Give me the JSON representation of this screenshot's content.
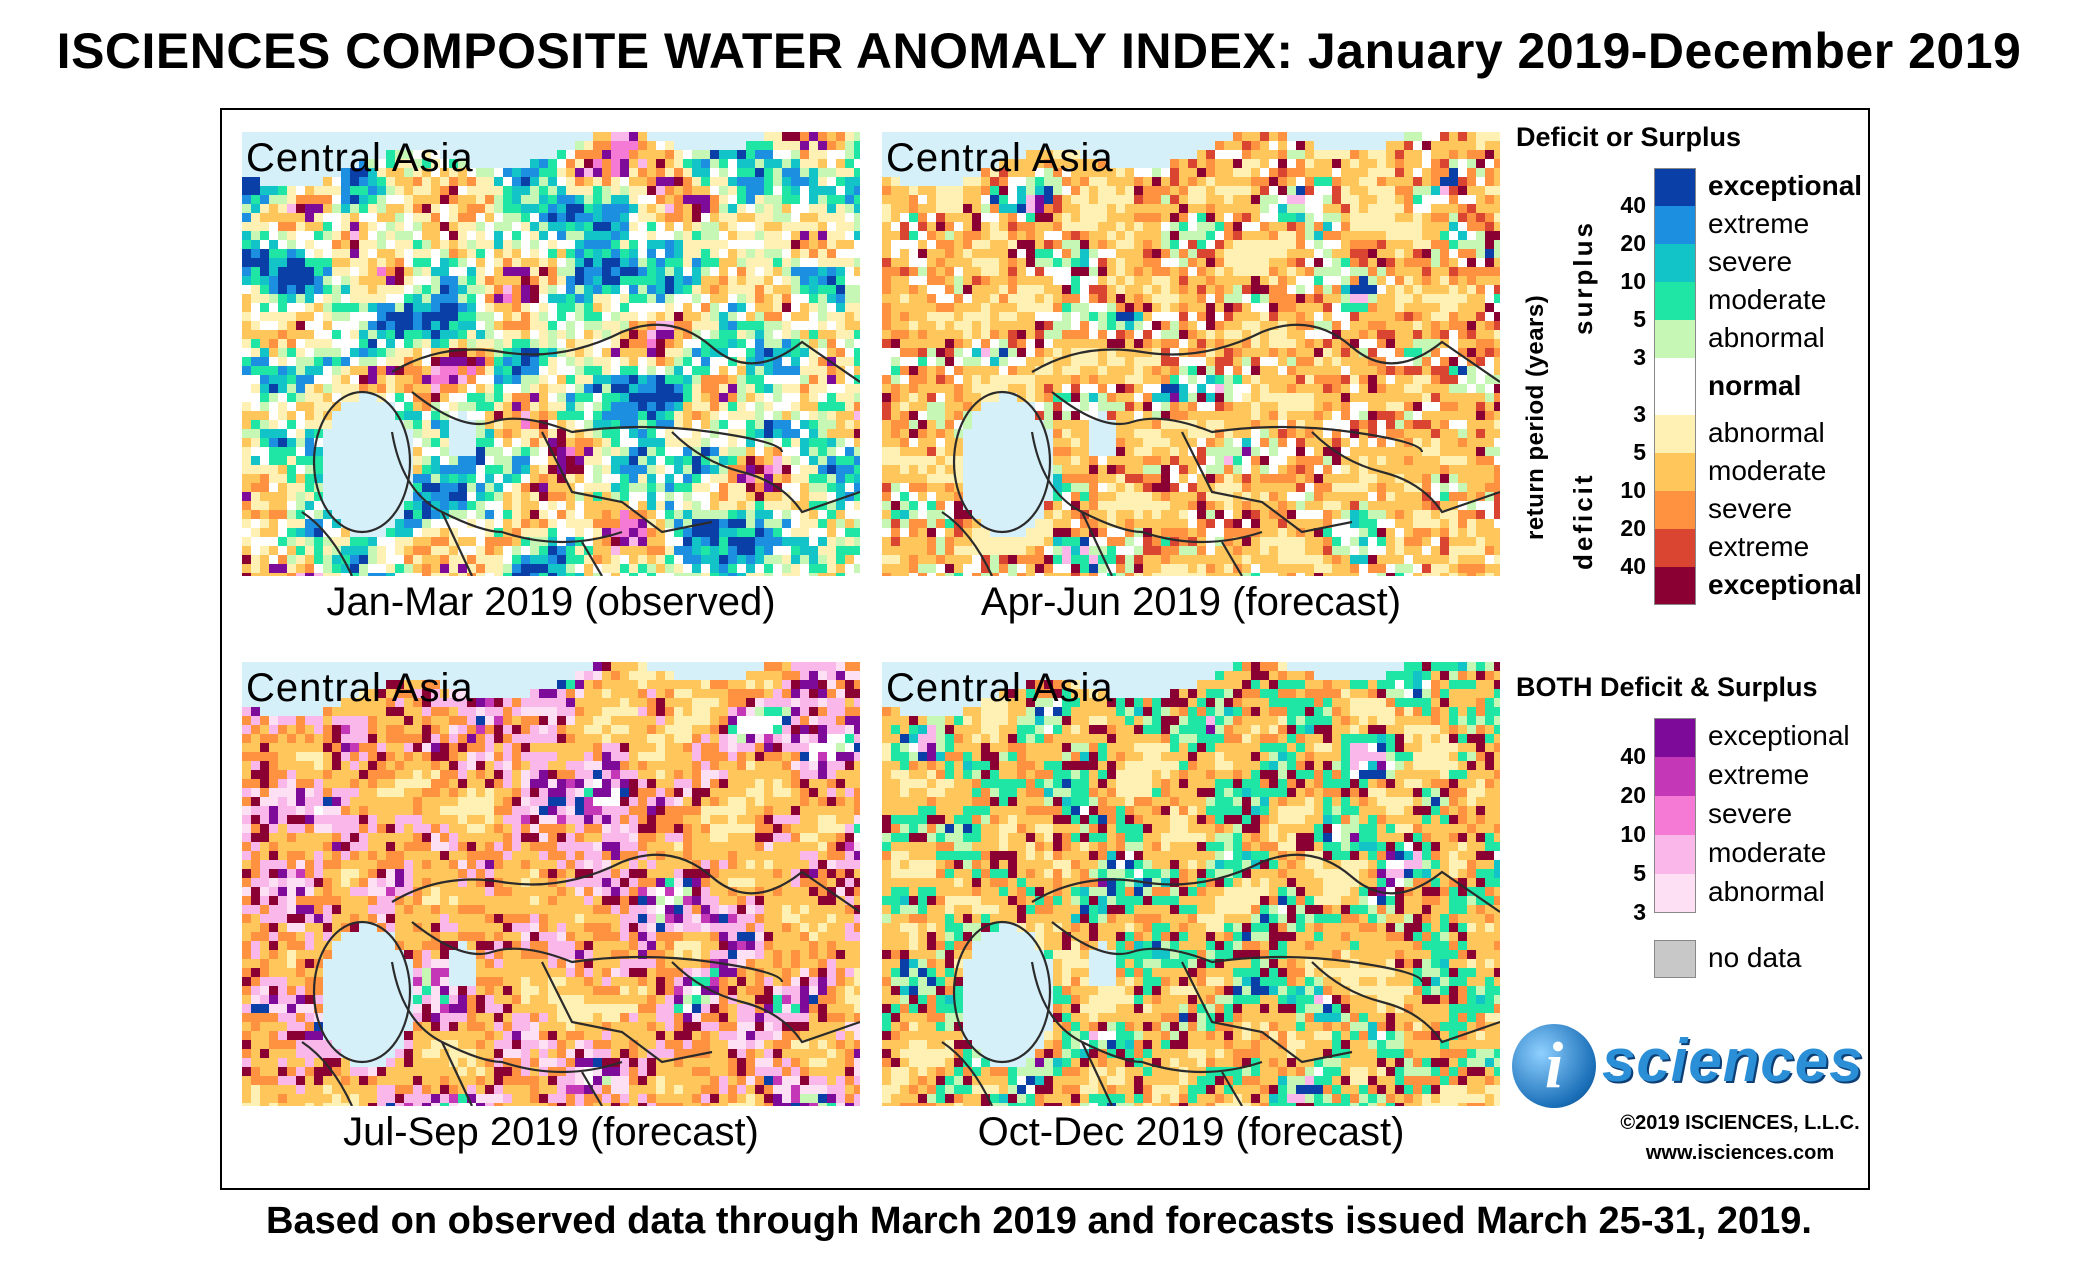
{
  "title": "ISCIENCES COMPOSITE WATER ANOMALY INDEX: January 2019-December 2019",
  "footer": "Based on observed data through March 2019 and forecasts issued March 25-31, 2019.",
  "maps": [
    {
      "region": "Central Asia",
      "caption": "Jan-Mar 2019 (observed)",
      "scheme": "mixed"
    },
    {
      "region": "Central Asia",
      "caption": "Apr-Jun 2019 (forecast)",
      "scheme": "deficit-mild"
    },
    {
      "region": "Central Asia",
      "caption": "Jul-Sep 2019 (forecast)",
      "scheme": "deficit-pink"
    },
    {
      "region": "Central Asia",
      "caption": "Oct-Dec 2019 (forecast)",
      "scheme": "deficit-green"
    }
  ],
  "legend": {
    "deficit_surplus_title": "Deficit or Surplus",
    "return_period_label": "return period (years)",
    "surplus_label": "surplus",
    "deficit_label": "deficit",
    "surplus": [
      {
        "label": "exceptional",
        "color": "#0b3fa8"
      },
      {
        "label": "extreme",
        "color": "#1c8fe0"
      },
      {
        "label": "severe",
        "color": "#12c4c8"
      },
      {
        "label": "moderate",
        "color": "#1fe6a5"
      },
      {
        "label": "abnormal",
        "color": "#c7f7b4"
      }
    ],
    "normal": {
      "label": "normal",
      "color": "#ffffff"
    },
    "deficit": [
      {
        "label": "abnormal",
        "color": "#fff0b3"
      },
      {
        "label": "moderate",
        "color": "#ffc65c"
      },
      {
        "label": "severe",
        "color": "#ff9240"
      },
      {
        "label": "extreme",
        "color": "#d94530"
      },
      {
        "label": "exceptional",
        "color": "#8a0032"
      }
    ],
    "surplus_ticks": [
      "40",
      "20",
      "10",
      "5",
      "3"
    ],
    "deficit_ticks": [
      "3",
      "5",
      "10",
      "20",
      "40"
    ],
    "both_title": "BOTH Deficit & Surplus",
    "both": [
      {
        "label": "exceptional",
        "color": "#7d0a99"
      },
      {
        "label": "extreme",
        "color": "#c438b8"
      },
      {
        "label": "severe",
        "color": "#f57ad6"
      },
      {
        "label": "moderate",
        "color": "#fab8ea"
      },
      {
        "label": "abnormal",
        "color": "#fde0f3"
      }
    ],
    "both_ticks": [
      "40",
      "20",
      "10",
      "5",
      "3"
    ],
    "no_data": {
      "label": "no data",
      "color": "#c8c8c8"
    }
  },
  "logo": {
    "letter": "i",
    "text": "sciences"
  },
  "copyright": "©2019 ISCIENCES, L.L.C.",
  "website": "www.isciences.com"
}
